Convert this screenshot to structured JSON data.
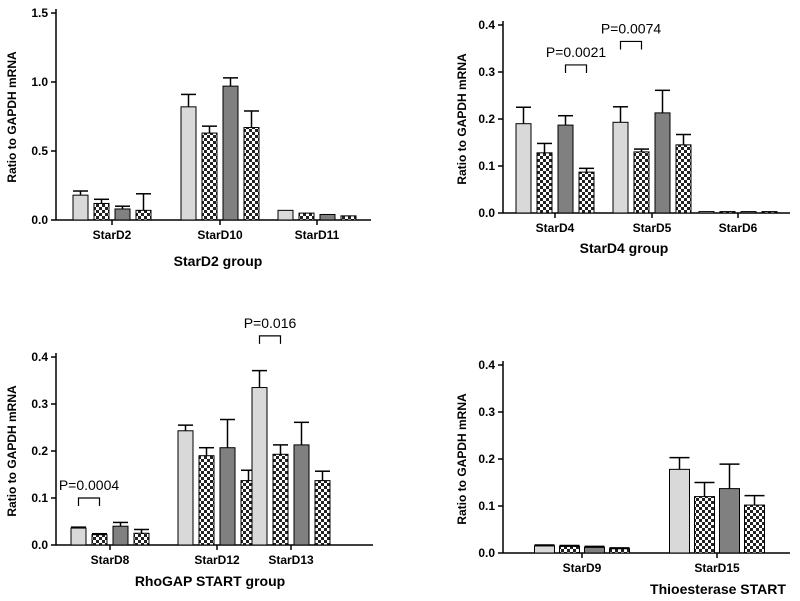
{
  "chart_data": [
    {
      "type": "bar",
      "categories": [
        "StarD2",
        "StarD10",
        "StarD11"
      ],
      "xlabel": "StarD2 group",
      "ylabel": "Ratio to GAPDH mRNA",
      "ylim": [
        0,
        1.5
      ],
      "yticks": [
        "0.0",
        "0.5",
        "1.0",
        "1.5"
      ],
      "series": [
        {
          "values": [
            0.18,
            0.82,
            0.07
          ],
          "errors": [
            0.03,
            0.09,
            0.0
          ],
          "pattern": "light"
        },
        {
          "values": [
            0.12,
            0.63,
            0.05
          ],
          "errors": [
            0.03,
            0.05,
            0.0
          ],
          "pattern": "check"
        },
        {
          "values": [
            0.08,
            0.97,
            0.04
          ],
          "errors": [
            0.02,
            0.06,
            0.0
          ],
          "pattern": "dark"
        },
        {
          "values": [
            0.07,
            0.67,
            0.03
          ],
          "errors": [
            0.12,
            0.12,
            0.0
          ],
          "pattern": "check"
        }
      ],
      "annotations": []
    },
    {
      "type": "bar",
      "categories": [
        "StarD4",
        "StarD5",
        "StarD6"
      ],
      "xlabel": "StarD4 group",
      "ylabel": "Ratio to GAPDH mRNA",
      "ylim": [
        0,
        0.4
      ],
      "yticks": [
        "0.0",
        "0.1",
        "0.2",
        "0.3",
        "0.4"
      ],
      "series": [
        {
          "values": [
            0.19,
            0.193,
            0.003
          ],
          "errors": [
            0.035,
            0.033,
            0.0
          ],
          "pattern": "light"
        },
        {
          "values": [
            0.128,
            0.13,
            0.003
          ],
          "errors": [
            0.02,
            0.006,
            0.0
          ],
          "pattern": "check"
        },
        {
          "values": [
            0.187,
            0.213,
            0.003
          ],
          "errors": [
            0.02,
            0.048,
            0.0
          ],
          "pattern": "dark"
        },
        {
          "values": [
            0.087,
            0.145,
            0.003
          ],
          "errors": [
            0.008,
            0.022,
            0.0
          ],
          "pattern": "check"
        }
      ],
      "annotations": [
        {
          "text": "P=0.0021",
          "category": 0,
          "from": 2,
          "to": 3,
          "y": 0.315
        },
        {
          "text": "P=0.0074",
          "category": 1,
          "from": 0,
          "to": 1,
          "y": 0.365
        }
      ]
    },
    {
      "type": "bar",
      "categories": [
        "StarD8",
        "StarD12",
        "StarD13"
      ],
      "xlabel": "RhoGAP START group",
      "ylabel": "Ratio to GAPDH mRNA",
      "ylim": [
        0,
        0.4
      ],
      "yticks": [
        "0.0",
        "0.1",
        "0.2",
        "0.3",
        "0.4"
      ],
      "series": [
        {
          "values": [
            0.036,
            0.243,
            0.335
          ],
          "errors": [
            0.002,
            0.012,
            0.036
          ],
          "pattern": "light"
        },
        {
          "values": [
            0.022,
            0.19,
            0.193
          ],
          "errors": [
            0.002,
            0.017,
            0.02
          ],
          "pattern": "check"
        },
        {
          "values": [
            0.04,
            0.207,
            0.213
          ],
          "errors": [
            0.008,
            0.06,
            0.048
          ],
          "pattern": "dark"
        },
        {
          "values": [
            0.025,
            0.137,
            0.137
          ],
          "errors": [
            0.008,
            0.022,
            0.02
          ],
          "pattern": "check"
        }
      ],
      "annotations": [
        {
          "text": "P=0.0004",
          "category": 0,
          "from": 0,
          "to": 1,
          "y": 0.1
        },
        {
          "text": "P=0.016",
          "category": 2,
          "from": 0,
          "to": 1,
          "y": 0.445
        }
      ]
    },
    {
      "type": "bar",
      "categories": [
        "StarD9",
        "StarD15"
      ],
      "xlabel": "Thioesterase START",
      "ylabel": "Ratio to GAPDH mRNA",
      "ylim": [
        0,
        0.4
      ],
      "yticks": [
        "0.0",
        "0.1",
        "0.2",
        "0.3",
        "0.4"
      ],
      "series": [
        {
          "values": [
            0.015,
            0.178
          ],
          "errors": [
            0.002,
            0.025
          ],
          "pattern": "light"
        },
        {
          "values": [
            0.014,
            0.12
          ],
          "errors": [
            0.002,
            0.03
          ],
          "pattern": "check"
        },
        {
          "values": [
            0.012,
            0.137
          ],
          "errors": [
            0.002,
            0.052
          ],
          "pattern": "dark"
        },
        {
          "values": [
            0.009,
            0.102
          ],
          "errors": [
            0.002,
            0.02
          ],
          "pattern": "check"
        }
      ],
      "annotations": []
    }
  ]
}
